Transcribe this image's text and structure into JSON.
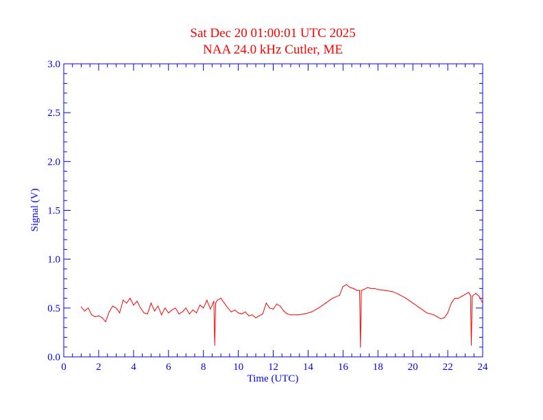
{
  "colors": {
    "title": "#ff0000",
    "axes": "#0000ff",
    "series": "#ff0000",
    "background": "#ffffff"
  },
  "chart_data": {
    "type": "line",
    "title": "Sat Dec 20 01:00:01 UTC 2025",
    "subtitle": "NAA 24.0 kHz Cutler, ME",
    "xlabel": "Time (UTC)",
    "ylabel": "Signal (V)",
    "xlim": [
      0,
      24
    ],
    "ylim": [
      0,
      3.0
    ],
    "x_ticks": [
      "0",
      "2",
      "4",
      "6",
      "8",
      "10",
      "12",
      "14",
      "16",
      "18",
      "20",
      "22",
      "24"
    ],
    "y_ticks": [
      "0.0",
      "0.5",
      "1.0",
      "1.5",
      "2.0",
      "2.5",
      "3.0"
    ],
    "x_tick_values": [
      0,
      2,
      4,
      6,
      8,
      10,
      12,
      14,
      16,
      18,
      20,
      22,
      24
    ],
    "y_tick_values": [
      0,
      0.5,
      1.0,
      1.5,
      2.0,
      2.5,
      3.0
    ],
    "grid": false,
    "series": [
      {
        "x": [
          1.0,
          1.2,
          1.4,
          1.6,
          1.8,
          2.0,
          2.2,
          2.4,
          2.6,
          2.8,
          3.0,
          3.2,
          3.4,
          3.6,
          3.8,
          4.0,
          4.2,
          4.4,
          4.6,
          4.8,
          5.0,
          5.2,
          5.4,
          5.6,
          5.8,
          6.0,
          6.2,
          6.4,
          6.6,
          6.8,
          7.0,
          7.2,
          7.4,
          7.6,
          7.8,
          8.0,
          8.2,
          8.4,
          8.6,
          8.65,
          8.7,
          8.8,
          9.0,
          9.2,
          9.4,
          9.6,
          9.8,
          10.0,
          10.2,
          10.4,
          10.6,
          10.8,
          11.0,
          11.2,
          11.4,
          11.6,
          11.8,
          12.0,
          12.2,
          12.4,
          12.6,
          12.8,
          13.0,
          13.4,
          13.8,
          14.2,
          14.6,
          15.0,
          15.4,
          15.8,
          16.0,
          16.2,
          16.4,
          16.6,
          16.8,
          16.95,
          17.0,
          17.05,
          17.2,
          17.4,
          17.6,
          17.8,
          18.0,
          18.4,
          18.8,
          19.2,
          19.6,
          20.0,
          20.4,
          20.8,
          21.2,
          21.4,
          21.6,
          21.8,
          22.0,
          22.2,
          22.4,
          22.6,
          22.8,
          23.0,
          23.2,
          23.3,
          23.35,
          23.4,
          23.6,
          23.8,
          24.0
        ],
        "y": [
          0.51,
          0.47,
          0.5,
          0.43,
          0.41,
          0.42,
          0.4,
          0.36,
          0.46,
          0.52,
          0.5,
          0.45,
          0.58,
          0.55,
          0.6,
          0.53,
          0.57,
          0.5,
          0.45,
          0.44,
          0.55,
          0.47,
          0.52,
          0.43,
          0.5,
          0.45,
          0.48,
          0.5,
          0.44,
          0.46,
          0.5,
          0.44,
          0.48,
          0.45,
          0.53,
          0.5,
          0.58,
          0.49,
          0.57,
          0.12,
          0.55,
          0.58,
          0.6,
          0.55,
          0.5,
          0.46,
          0.48,
          0.45,
          0.44,
          0.46,
          0.42,
          0.43,
          0.4,
          0.42,
          0.44,
          0.55,
          0.5,
          0.49,
          0.54,
          0.52,
          0.47,
          0.44,
          0.43,
          0.43,
          0.44,
          0.46,
          0.5,
          0.55,
          0.6,
          0.63,
          0.72,
          0.74,
          0.71,
          0.7,
          0.68,
          0.68,
          0.1,
          0.68,
          0.69,
          0.71,
          0.7,
          0.7,
          0.69,
          0.68,
          0.67,
          0.64,
          0.6,
          0.55,
          0.5,
          0.45,
          0.43,
          0.41,
          0.39,
          0.4,
          0.45,
          0.55,
          0.6,
          0.6,
          0.62,
          0.64,
          0.66,
          0.63,
          0.12,
          0.62,
          0.65,
          0.62,
          0.55
        ]
      }
    ]
  }
}
